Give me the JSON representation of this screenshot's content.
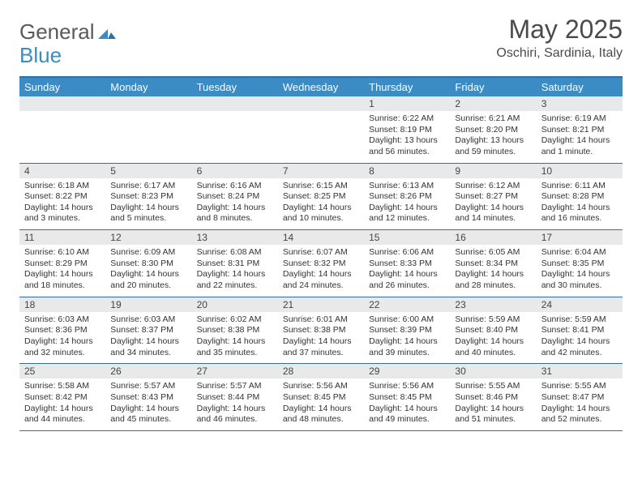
{
  "logo": {
    "general": "General",
    "blue": "Blue"
  },
  "title": "May 2025",
  "subtitle": "Oschiri, Sardinia, Italy",
  "theme": {
    "header_bg": "#3b8bc4",
    "header_text": "#ffffff",
    "daynum_bg": "#e8e9ea",
    "border": "#2f6fa7",
    "body_text": "#333333",
    "logo_gray": "#58595b",
    "logo_blue": "#3b8bc4"
  },
  "daysOfWeek": [
    "Sunday",
    "Monday",
    "Tuesday",
    "Wednesday",
    "Thursday",
    "Friday",
    "Saturday"
  ],
  "weeks": [
    [
      {
        "n": "",
        "sr": "",
        "ss": "",
        "dl1": "",
        "dl2": ""
      },
      {
        "n": "",
        "sr": "",
        "ss": "",
        "dl1": "",
        "dl2": ""
      },
      {
        "n": "",
        "sr": "",
        "ss": "",
        "dl1": "",
        "dl2": ""
      },
      {
        "n": "",
        "sr": "",
        "ss": "",
        "dl1": "",
        "dl2": ""
      },
      {
        "n": "1",
        "sr": "Sunrise: 6:22 AM",
        "ss": "Sunset: 8:19 PM",
        "dl1": "Daylight: 13 hours",
        "dl2": "and 56 minutes."
      },
      {
        "n": "2",
        "sr": "Sunrise: 6:21 AM",
        "ss": "Sunset: 8:20 PM",
        "dl1": "Daylight: 13 hours",
        "dl2": "and 59 minutes."
      },
      {
        "n": "3",
        "sr": "Sunrise: 6:19 AM",
        "ss": "Sunset: 8:21 PM",
        "dl1": "Daylight: 14 hours",
        "dl2": "and 1 minute."
      }
    ],
    [
      {
        "n": "4",
        "sr": "Sunrise: 6:18 AM",
        "ss": "Sunset: 8:22 PM",
        "dl1": "Daylight: 14 hours",
        "dl2": "and 3 minutes."
      },
      {
        "n": "5",
        "sr": "Sunrise: 6:17 AM",
        "ss": "Sunset: 8:23 PM",
        "dl1": "Daylight: 14 hours",
        "dl2": "and 5 minutes."
      },
      {
        "n": "6",
        "sr": "Sunrise: 6:16 AM",
        "ss": "Sunset: 8:24 PM",
        "dl1": "Daylight: 14 hours",
        "dl2": "and 8 minutes."
      },
      {
        "n": "7",
        "sr": "Sunrise: 6:15 AM",
        "ss": "Sunset: 8:25 PM",
        "dl1": "Daylight: 14 hours",
        "dl2": "and 10 minutes."
      },
      {
        "n": "8",
        "sr": "Sunrise: 6:13 AM",
        "ss": "Sunset: 8:26 PM",
        "dl1": "Daylight: 14 hours",
        "dl2": "and 12 minutes."
      },
      {
        "n": "9",
        "sr": "Sunrise: 6:12 AM",
        "ss": "Sunset: 8:27 PM",
        "dl1": "Daylight: 14 hours",
        "dl2": "and 14 minutes."
      },
      {
        "n": "10",
        "sr": "Sunrise: 6:11 AM",
        "ss": "Sunset: 8:28 PM",
        "dl1": "Daylight: 14 hours",
        "dl2": "and 16 minutes."
      }
    ],
    [
      {
        "n": "11",
        "sr": "Sunrise: 6:10 AM",
        "ss": "Sunset: 8:29 PM",
        "dl1": "Daylight: 14 hours",
        "dl2": "and 18 minutes."
      },
      {
        "n": "12",
        "sr": "Sunrise: 6:09 AM",
        "ss": "Sunset: 8:30 PM",
        "dl1": "Daylight: 14 hours",
        "dl2": "and 20 minutes."
      },
      {
        "n": "13",
        "sr": "Sunrise: 6:08 AM",
        "ss": "Sunset: 8:31 PM",
        "dl1": "Daylight: 14 hours",
        "dl2": "and 22 minutes."
      },
      {
        "n": "14",
        "sr": "Sunrise: 6:07 AM",
        "ss": "Sunset: 8:32 PM",
        "dl1": "Daylight: 14 hours",
        "dl2": "and 24 minutes."
      },
      {
        "n": "15",
        "sr": "Sunrise: 6:06 AM",
        "ss": "Sunset: 8:33 PM",
        "dl1": "Daylight: 14 hours",
        "dl2": "and 26 minutes."
      },
      {
        "n": "16",
        "sr": "Sunrise: 6:05 AM",
        "ss": "Sunset: 8:34 PM",
        "dl1": "Daylight: 14 hours",
        "dl2": "and 28 minutes."
      },
      {
        "n": "17",
        "sr": "Sunrise: 6:04 AM",
        "ss": "Sunset: 8:35 PM",
        "dl1": "Daylight: 14 hours",
        "dl2": "and 30 minutes."
      }
    ],
    [
      {
        "n": "18",
        "sr": "Sunrise: 6:03 AM",
        "ss": "Sunset: 8:36 PM",
        "dl1": "Daylight: 14 hours",
        "dl2": "and 32 minutes."
      },
      {
        "n": "19",
        "sr": "Sunrise: 6:03 AM",
        "ss": "Sunset: 8:37 PM",
        "dl1": "Daylight: 14 hours",
        "dl2": "and 34 minutes."
      },
      {
        "n": "20",
        "sr": "Sunrise: 6:02 AM",
        "ss": "Sunset: 8:38 PM",
        "dl1": "Daylight: 14 hours",
        "dl2": "and 35 minutes."
      },
      {
        "n": "21",
        "sr": "Sunrise: 6:01 AM",
        "ss": "Sunset: 8:38 PM",
        "dl1": "Daylight: 14 hours",
        "dl2": "and 37 minutes."
      },
      {
        "n": "22",
        "sr": "Sunrise: 6:00 AM",
        "ss": "Sunset: 8:39 PM",
        "dl1": "Daylight: 14 hours",
        "dl2": "and 39 minutes."
      },
      {
        "n": "23",
        "sr": "Sunrise: 5:59 AM",
        "ss": "Sunset: 8:40 PM",
        "dl1": "Daylight: 14 hours",
        "dl2": "and 40 minutes."
      },
      {
        "n": "24",
        "sr": "Sunrise: 5:59 AM",
        "ss": "Sunset: 8:41 PM",
        "dl1": "Daylight: 14 hours",
        "dl2": "and 42 minutes."
      }
    ],
    [
      {
        "n": "25",
        "sr": "Sunrise: 5:58 AM",
        "ss": "Sunset: 8:42 PM",
        "dl1": "Daylight: 14 hours",
        "dl2": "and 44 minutes."
      },
      {
        "n": "26",
        "sr": "Sunrise: 5:57 AM",
        "ss": "Sunset: 8:43 PM",
        "dl1": "Daylight: 14 hours",
        "dl2": "and 45 minutes."
      },
      {
        "n": "27",
        "sr": "Sunrise: 5:57 AM",
        "ss": "Sunset: 8:44 PM",
        "dl1": "Daylight: 14 hours",
        "dl2": "and 46 minutes."
      },
      {
        "n": "28",
        "sr": "Sunrise: 5:56 AM",
        "ss": "Sunset: 8:45 PM",
        "dl1": "Daylight: 14 hours",
        "dl2": "and 48 minutes."
      },
      {
        "n": "29",
        "sr": "Sunrise: 5:56 AM",
        "ss": "Sunset: 8:45 PM",
        "dl1": "Daylight: 14 hours",
        "dl2": "and 49 minutes."
      },
      {
        "n": "30",
        "sr": "Sunrise: 5:55 AM",
        "ss": "Sunset: 8:46 PM",
        "dl1": "Daylight: 14 hours",
        "dl2": "and 51 minutes."
      },
      {
        "n": "31",
        "sr": "Sunrise: 5:55 AM",
        "ss": "Sunset: 8:47 PM",
        "dl1": "Daylight: 14 hours",
        "dl2": "and 52 minutes."
      }
    ]
  ]
}
